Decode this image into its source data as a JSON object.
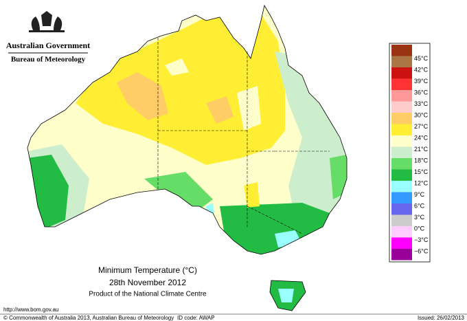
{
  "header": {
    "government": "Australian Government",
    "agency": "Bureau of Meteorology"
  },
  "map": {
    "title": "Minimum Temperature (°C)",
    "date": "28th November 2012",
    "product": "Product of the National Climate Centre"
  },
  "legend": {
    "top_color": "#993311",
    "items": [
      {
        "label": "45°C",
        "color": "#aa7744"
      },
      {
        "label": "42°C",
        "color": "#cc1111"
      },
      {
        "label": "39°C",
        "color": "#ff3333"
      },
      {
        "label": "36°C",
        "color": "#ff9999"
      },
      {
        "label": "33°C",
        "color": "#ffcccc"
      },
      {
        "label": "30°C",
        "color": "#ffcc66"
      },
      {
        "label": "27°C",
        "color": "#ffee33"
      },
      {
        "label": "24°C",
        "color": "#ffffcc"
      },
      {
        "label": "21°C",
        "color": "#cceecc"
      },
      {
        "label": "18°C",
        "color": "#66dd66"
      },
      {
        "label": "15°C",
        "color": "#22bb44"
      },
      {
        "label": "12°C",
        "color": "#99ffff"
      },
      {
        "label": "9°C",
        "color": "#3399ff"
      },
      {
        "label": "6°C",
        "color": "#6666ee"
      },
      {
        "label": "3°C",
        "color": "#cccccc"
      },
      {
        "label": "0°C",
        "color": "#ffccff"
      },
      {
        "label": "−3°C",
        "color": "#ff00ff"
      },
      {
        "label": "−6°C",
        "color": "#990099"
      }
    ]
  },
  "footer": {
    "url": "http://www.bom.gov.au",
    "copyright": "© Commonwealth of Australia 2013, Australian Bureau of Meteorology",
    "id_code": "ID code: AWAP",
    "issued": "Issued: 26/02/2013"
  }
}
